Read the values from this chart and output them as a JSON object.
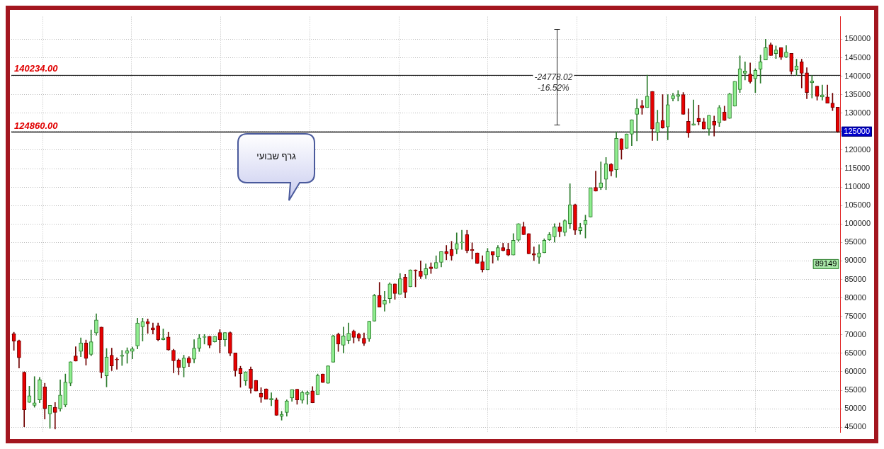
{
  "chart_data": {
    "type": "candlestick",
    "categories": [
      null,
      null,
      null,
      null,
      null,
      null,
      null,
      null,
      null,
      null,
      null,
      null,
      null,
      null,
      null,
      null,
      null,
      null,
      null,
      null,
      null,
      null,
      null,
      null,
      null,
      null,
      null,
      null,
      null,
      null,
      null,
      null,
      null,
      null,
      null,
      null,
      null,
      null,
      null,
      null,
      null,
      null,
      null,
      null,
      null,
      null,
      null,
      null,
      null,
      null,
      null,
      null,
      null,
      null,
      null,
      null,
      null,
      null,
      null,
      null,
      null,
      null,
      null,
      null,
      null,
      null,
      null,
      null,
      null,
      null,
      null,
      null,
      null,
      null,
      null,
      null,
      null,
      null,
      null,
      null,
      null,
      null,
      null,
      null,
      null,
      null,
      null,
      null,
      null,
      null,
      null,
      null,
      null,
      null,
      null,
      null,
      null,
      null,
      null,
      null,
      null,
      null,
      null,
      null,
      null,
      null,
      null,
      null,
      null,
      null,
      null,
      null,
      null,
      null,
      null,
      null,
      null,
      null,
      null,
      null,
      null,
      null,
      null,
      null,
      null,
      null,
      null,
      null,
      null,
      null,
      null,
      null,
      null,
      null,
      null,
      null,
      null,
      null,
      null,
      null,
      null,
      null,
      null,
      null,
      null,
      null,
      null,
      null,
      null,
      null,
      null,
      null,
      null,
      null,
      null,
      null,
      null,
      null,
      null,
      null,
      null
    ],
    "ohlc": [
      [
        70300,
        70700,
        65800,
        68300
      ],
      [
        68400,
        68600,
        61000,
        63800
      ],
      [
        59900,
        60000,
        45100,
        49700
      ],
      [
        51700,
        56100,
        51700,
        53500
      ],
      [
        50900,
        58700,
        50400,
        51600
      ],
      [
        52400,
        58500,
        51600,
        57800
      ],
      [
        55900,
        56900,
        47200,
        50000
      ],
      [
        48600,
        50900,
        44700,
        50900
      ],
      [
        50400,
        51700,
        44500,
        49000
      ],
      [
        50000,
        57800,
        49300,
        53700
      ],
      [
        51000,
        59400,
        50500,
        57200
      ],
      [
        56900,
        62700,
        56200,
        62700
      ],
      [
        64300,
        66800,
        62900,
        62900
      ],
      [
        65500,
        69200,
        64100,
        67800
      ],
      [
        67800,
        68600,
        61800,
        63600
      ],
      [
        64700,
        71300,
        64300,
        68100
      ],
      [
        70500,
        75700,
        69900,
        74000
      ],
      [
        72100,
        72100,
        58300,
        59800
      ],
      [
        58900,
        66300,
        55900,
        64000
      ],
      [
        64500,
        66400,
        60300,
        61600
      ],
      [
        63400,
        63800,
        60700,
        63200
      ],
      [
        64200,
        65800,
        61700,
        64500
      ],
      [
        65000,
        66500,
        62300,
        65700
      ],
      [
        65500,
        66700,
        63500,
        66200
      ],
      [
        67000,
        74500,
        66200,
        73200
      ],
      [
        72200,
        74500,
        68300,
        73600
      ],
      [
        73600,
        74300,
        70400,
        73000
      ],
      [
        71900,
        73200,
        70200,
        71300
      ],
      [
        72500,
        73200,
        68400,
        68700
      ],
      [
        68700,
        71600,
        68600,
        69200
      ],
      [
        69400,
        70700,
        65800,
        65900
      ],
      [
        65800,
        66100,
        59700,
        63000
      ],
      [
        63200,
        63500,
        59200,
        61100
      ],
      [
        61200,
        64500,
        58600,
        63700
      ],
      [
        63700,
        64100,
        61400,
        62400
      ],
      [
        63400,
        68700,
        62400,
        66400
      ],
      [
        66400,
        70100,
        65500,
        69200
      ],
      [
        69300,
        70100,
        67500,
        69300
      ],
      [
        69600,
        69600,
        66500,
        67200
      ],
      [
        68100,
        69600,
        68000,
        69600
      ],
      [
        70600,
        71400,
        65100,
        68700
      ],
      [
        68700,
        70600,
        66900,
        70600
      ],
      [
        70600,
        70800,
        64300,
        65000
      ],
      [
        65100,
        65100,
        58800,
        60300
      ],
      [
        60900,
        61500,
        55800,
        59500
      ],
      [
        57500,
        60000,
        56300,
        60000
      ],
      [
        60700,
        61300,
        54200,
        55500
      ],
      [
        57700,
        57700,
        54800,
        54800
      ],
      [
        54200,
        55700,
        51700,
        53100
      ],
      [
        55400,
        55400,
        52600,
        52600
      ],
      [
        52400,
        54300,
        50800,
        52800
      ],
      [
        52400,
        52900,
        48200,
        48200
      ],
      [
        48000,
        49300,
        46900,
        48500
      ],
      [
        49000,
        52400,
        48000,
        52100
      ],
      [
        52900,
        55200,
        52000,
        55200
      ],
      [
        55300,
        55300,
        51200,
        52400
      ],
      [
        52300,
        54800,
        51500,
        54400
      ],
      [
        53900,
        54800,
        51200,
        54400
      ],
      [
        54800,
        56000,
        51600,
        51600
      ],
      [
        53800,
        59400,
        53800,
        59000
      ],
      [
        59400,
        59400,
        57100,
        57100
      ],
      [
        56900,
        61600,
        56900,
        61600
      ],
      [
        62600,
        69900,
        62600,
        69700
      ],
      [
        70200,
        70500,
        65500,
        67500
      ],
      [
        67200,
        72100,
        65100,
        69700
      ],
      [
        68500,
        73200,
        67600,
        70400
      ],
      [
        71000,
        71300,
        67800,
        69300
      ],
      [
        70200,
        70500,
        68300,
        69100
      ],
      [
        69100,
        70500,
        67100,
        67700
      ],
      [
        68900,
        73700,
        68200,
        73700
      ],
      [
        73700,
        81000,
        73700,
        80700
      ],
      [
        80700,
        84200,
        77500,
        77500
      ],
      [
        78300,
        81800,
        76400,
        79300
      ],
      [
        79800,
        84100,
        78600,
        83800
      ],
      [
        83800,
        83800,
        79600,
        81200
      ],
      [
        81000,
        86600,
        81000,
        85200
      ],
      [
        85600,
        86400,
        80000,
        81500
      ],
      [
        83000,
        87600,
        83000,
        87600
      ],
      [
        87600,
        87600,
        83000,
        87300
      ],
      [
        87200,
        90000,
        85200,
        85800
      ],
      [
        86200,
        89200,
        85200,
        87900
      ],
      [
        88400,
        89500,
        86600,
        87900
      ],
      [
        88000,
        91400,
        87900,
        89600
      ],
      [
        89600,
        92500,
        88400,
        92500
      ],
      [
        92500,
        94200,
        90300,
        91900
      ],
      [
        93100,
        95300,
        90200,
        91400
      ],
      [
        93100,
        97600,
        91900,
        94700
      ],
      [
        94900,
        98300,
        93100,
        95100
      ],
      [
        97100,
        98300,
        92200,
        92800
      ],
      [
        93100,
        94900,
        90500,
        92800
      ],
      [
        92200,
        92200,
        89300,
        89300
      ],
      [
        89800,
        91400,
        87000,
        87600
      ],
      [
        87600,
        93400,
        87600,
        92500
      ],
      [
        92500,
        92500,
        89400,
        91600
      ],
      [
        91100,
        94200,
        90200,
        93600
      ],
      [
        93600,
        94800,
        92700,
        92800
      ],
      [
        93100,
        94800,
        91400,
        91600
      ],
      [
        91600,
        97400,
        91600,
        95600
      ],
      [
        95600,
        100100,
        95300,
        100100
      ],
      [
        99300,
        100500,
        97100,
        97100
      ],
      [
        97400,
        97400,
        91900,
        91900
      ],
      [
        92000,
        93800,
        90100,
        91600
      ],
      [
        91000,
        94400,
        89300,
        92200
      ],
      [
        92200,
        96000,
        92200,
        95600
      ],
      [
        95700,
        97700,
        95500,
        97100
      ],
      [
        96500,
        100100,
        95100,
        99200
      ],
      [
        99200,
        100300,
        96500,
        97900
      ],
      [
        97700,
        101200,
        96800,
        100900
      ],
      [
        100100,
        110900,
        98800,
        105200
      ],
      [
        105200,
        105400,
        97100,
        98300
      ],
      [
        98200,
        100200,
        97200,
        99100
      ],
      [
        99900,
        102400,
        96200,
        101000
      ],
      [
        101900,
        109800,
        101900,
        109800
      ],
      [
        109900,
        114300,
        108900,
        108900
      ],
      [
        109900,
        116800,
        109300,
        111100
      ],
      [
        112100,
        118000,
        109300,
        116300
      ],
      [
        116200,
        116400,
        113000,
        114300
      ],
      [
        114700,
        124800,
        112600,
        123200
      ],
      [
        123100,
        123100,
        117500,
        120100
      ],
      [
        120500,
        124400,
        120500,
        124400
      ],
      [
        124300,
        128200,
        121200,
        128200
      ],
      [
        129700,
        133800,
        122500,
        131300
      ],
      [
        132000,
        133500,
        129700,
        131400
      ],
      [
        131500,
        140300,
        131500,
        134600
      ],
      [
        135900,
        135900,
        122600,
        125700
      ],
      [
        124800,
        130800,
        122600,
        127500
      ],
      [
        128000,
        135000,
        125900,
        126000
      ],
      [
        126300,
        135000,
        122800,
        132300
      ],
      [
        133900,
        135400,
        133300,
        134800
      ],
      [
        134500,
        136100,
        133300,
        135000
      ],
      [
        135000,
        135600,
        129700,
        129700
      ],
      [
        127800,
        131200,
        123400,
        124600
      ],
      [
        126700,
        133600,
        126700,
        127100
      ],
      [
        128600,
        132200,
        126800,
        127700
      ],
      [
        127700,
        128600,
        125700,
        125700
      ],
      [
        125700,
        129400,
        124000,
        129400
      ],
      [
        127800,
        129200,
        123800,
        126700
      ],
      [
        127400,
        132100,
        126400,
        131500
      ],
      [
        130300,
        131900,
        128000,
        128000
      ],
      [
        128600,
        135400,
        128600,
        135200
      ],
      [
        131900,
        138600,
        131900,
        138600
      ],
      [
        136400,
        145500,
        135600,
        142000
      ],
      [
        140800,
        143900,
        139000,
        141400
      ],
      [
        140600,
        143600,
        138100,
        138500
      ],
      [
        139300,
        142000,
        135600,
        141600
      ],
      [
        141900,
        145700,
        138100,
        143900
      ],
      [
        144400,
        150000,
        144400,
        147700
      ],
      [
        148500,
        149000,
        145600,
        145600
      ],
      [
        146100,
        148200,
        144800,
        147100
      ],
      [
        147700,
        147700,
        144500,
        145100
      ],
      [
        145200,
        148300,
        145000,
        146500
      ],
      [
        146200,
        146200,
        140500,
        141300
      ],
      [
        141700,
        144600,
        140200,
        142800
      ],
      [
        143900,
        144600,
        136800,
        140800
      ],
      [
        140900,
        142300,
        133900,
        135600
      ],
      [
        138200,
        140200,
        134100,
        138700
      ],
      [
        137300,
        137300,
        133500,
        134500
      ],
      [
        134400,
        137600,
        133500,
        134900
      ],
      [
        134400,
        137600,
        132700,
        132700
      ],
      [
        132700,
        135400,
        130700,
        131500
      ],
      [
        131600,
        131600,
        124800,
        125000
      ]
    ],
    "ylim": [
      43700,
      156100
    ],
    "yticks": [
      45000,
      50000,
      55000,
      60000,
      65000,
      70000,
      75000,
      80000,
      85000,
      90000,
      95000,
      100000,
      105000,
      110000,
      115000,
      120000,
      {
        "value": 125000,
        "label": null
      },
      130000,
      135000,
      140000,
      145000,
      150000
    ],
    "grid": true,
    "tick_labels": "y",
    "ref_lines": [
      {
        "axis": "y",
        "value": 140234,
        "label": "140234.00",
        "color": "#000000"
      },
      {
        "axis": "y",
        "value": 124860,
        "label": "124860.00",
        "color": "#555555"
      }
    ],
    "annotations": [
      "גרף שבועי",
      "-24778.02",
      "-16.52%",
      {
        "text": "125000",
        "y": 125000
      },
      {
        "text": "89149",
        "y": 89149
      }
    ]
  }
}
